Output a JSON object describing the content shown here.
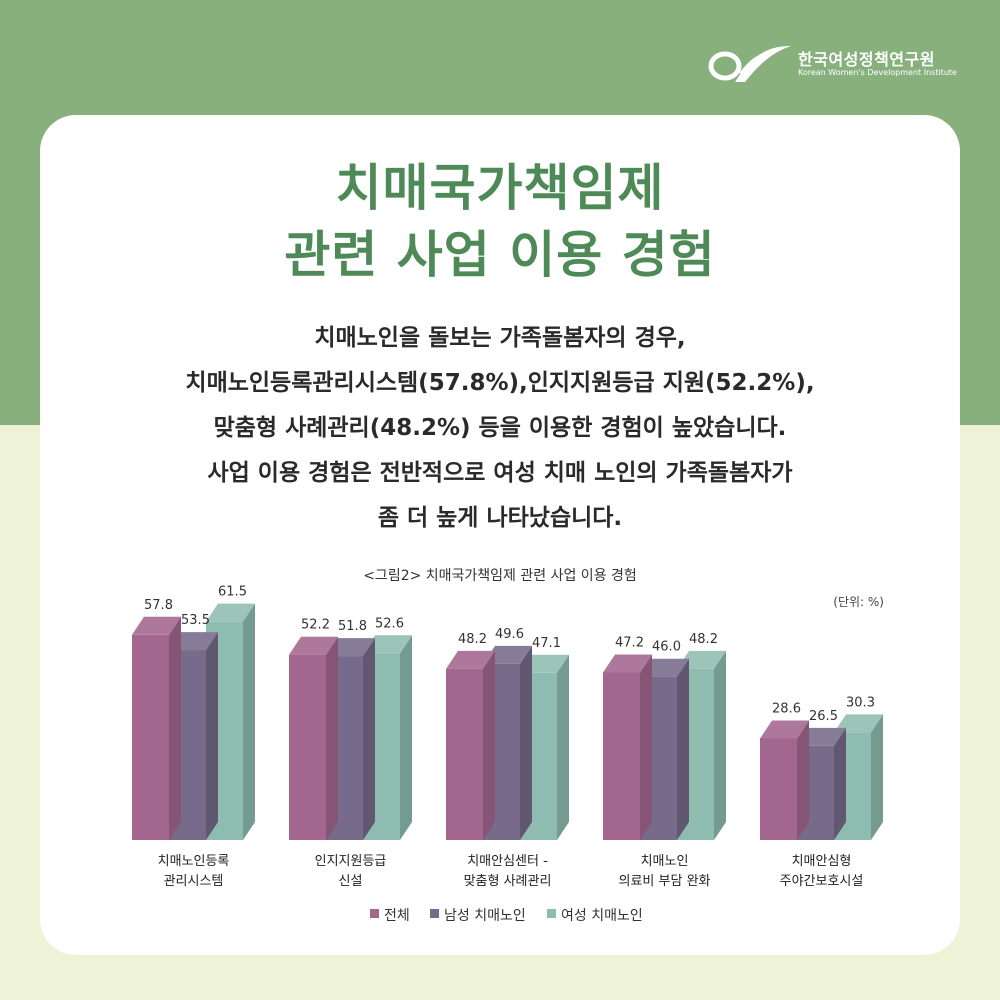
{
  "brand": {
    "name_ko": "한국여성정책연구원",
    "name_en": "Korean Women's Development Institute"
  },
  "title": {
    "line1": "치매국가책임제",
    "line2": "관련 사업 이용 경험"
  },
  "body_lines": [
    "치매노인을 돌보는 가족돌봄자의 경우,",
    "치매노인등록관리시스템(57.8%),인지지원등급 지원(52.2%),",
    "맞춤형 사례관리(48.2%) 등을 이용한 경험이 높았습니다.",
    "사업 이용 경험은 전반적으로 여성 치매 노인의 가족돌봄자가",
    "좀 더 높게 나타났습니다."
  ],
  "colors": {
    "top_band": "#87b07d",
    "page_bg": "#eef3d7",
    "title": "#4e8a57"
  },
  "chart_data": {
    "type": "bar",
    "title": "<그림2> 치매국가책임제 관련 사업 이용 경험",
    "unit": "(단위: %)",
    "categories": [
      [
        "치매노인등록",
        "관리시스템"
      ],
      [
        "인지지원등급",
        "신설"
      ],
      [
        "치매안심센터 -",
        "맞춤형 사례관리"
      ],
      [
        "치매노인",
        "의료비 부담 완화"
      ],
      [
        "치매안심형",
        "주야간보호시설"
      ]
    ],
    "series": [
      {
        "name": "전체",
        "color": "#a3668f",
        "values": [
          57.8,
          52.2,
          48.2,
          47.2,
          28.6
        ]
      },
      {
        "name": "남성 치매노인",
        "color": "#776a8a",
        "values": [
          53.5,
          51.8,
          49.6,
          46.0,
          26.5
        ]
      },
      {
        "name": "여성 치매노인",
        "color": "#8fbcb0",
        "values": [
          61.5,
          52.6,
          47.1,
          48.2,
          30.3
        ]
      }
    ],
    "value_labels": [
      [
        "57.8",
        "52.2",
        "48.2",
        "47.2",
        "28.6"
      ],
      [
        "53.5",
        "51.8",
        "49.6",
        "46.0",
        "26.5"
      ],
      [
        "61.5",
        "52.6",
        "47.1",
        "48.2",
        "30.3"
      ]
    ],
    "ylim": [
      0,
      70
    ],
    "legend_position": "bottom",
    "grid": false,
    "style": "3d-bar"
  }
}
